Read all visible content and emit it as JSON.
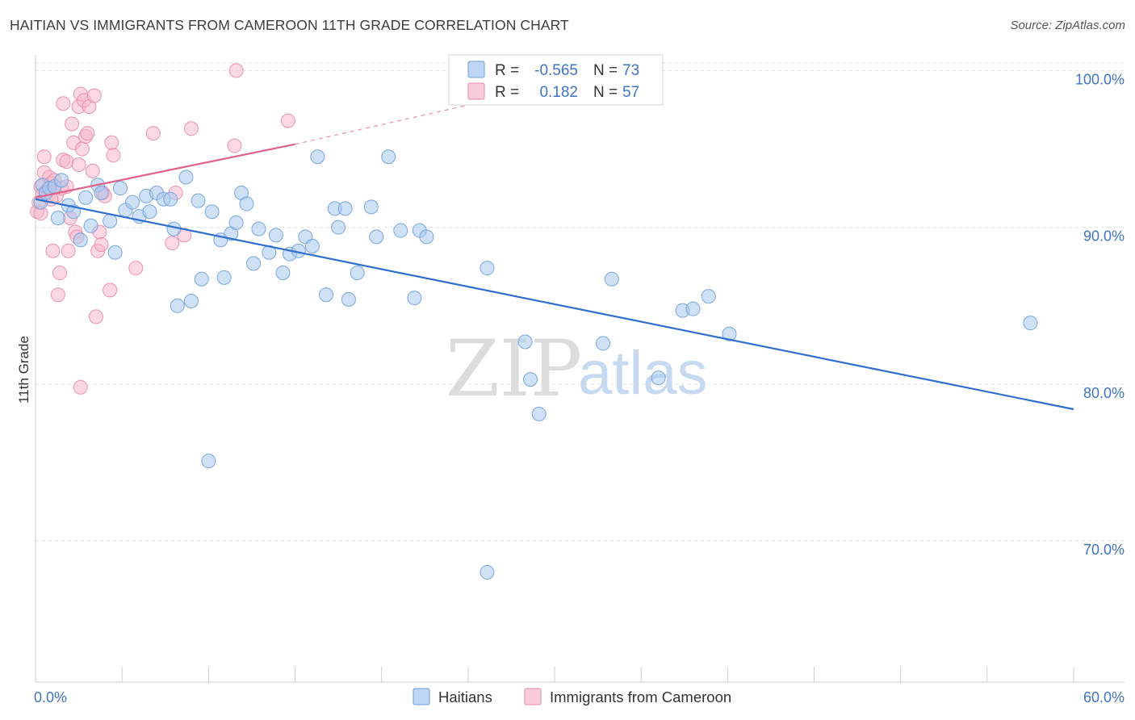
{
  "title": "HAITIAN VS IMMIGRANTS FROM CAMEROON 11TH GRADE CORRELATION CHART",
  "source": "Source: ZipAtlas.com",
  "watermark": {
    "zip": "ZIP",
    "atlas": "atlas"
  },
  "colors": {
    "haitians": "#a8c8f0",
    "haitians_stroke": "#6e9fd8",
    "haitians_line": "#2f6fd0",
    "cameroon": "#f7b8cc",
    "cameroon_stroke": "#e88aa8",
    "cameroon_line": "#e0608a",
    "tick_text": "#3f74c4",
    "grid": "#e4e4e4"
  },
  "legend": {
    "rows": [
      {
        "r_label": "R =",
        "r_value": "-0.565",
        "n_label": "N =",
        "n_value": "73"
      },
      {
        "r_label": "R =",
        "r_value": "0.182",
        "n_label": "N =",
        "n_value": "57"
      }
    ]
  },
  "chart_data": {
    "type": "scatter",
    "title": "HAITIAN VS IMMIGRANTS FROM CAMEROON 11TH GRADE CORRELATION CHART",
    "xlabel": "",
    "ylabel": "11th Grade",
    "xlim": [
      0,
      60
    ],
    "ylim": [
      61,
      101
    ],
    "x_tick_labels": [
      "0.0%",
      "60.0%"
    ],
    "y_ticks": [
      70,
      80,
      90,
      100
    ],
    "y_tick_labels": [
      "70.0%",
      "80.0%",
      "90.0%",
      "100.0%"
    ],
    "grid": true,
    "legend_position": "bottom",
    "series": [
      {
        "name": "Haitians",
        "r": -0.565,
        "n": 73,
        "trend": {
          "x0": 0,
          "y0": 91.8,
          "x1": 60,
          "y1": 78.4
        },
        "points": [
          [
            0.3,
            91.6
          ],
          [
            0.4,
            92.7
          ],
          [
            0.6,
            92.2
          ],
          [
            0.8,
            92.5
          ],
          [
            1.1,
            92.6
          ],
          [
            1.3,
            90.6
          ],
          [
            1.5,
            93.0
          ],
          [
            1.9,
            91.4
          ],
          [
            2.2,
            91.0
          ],
          [
            2.6,
            89.2
          ],
          [
            2.9,
            91.9
          ],
          [
            3.2,
            90.1
          ],
          [
            3.6,
            92.7
          ],
          [
            3.8,
            92.2
          ],
          [
            4.3,
            90.4
          ],
          [
            4.6,
            88.4
          ],
          [
            4.9,
            92.5
          ],
          [
            5.2,
            91.1
          ],
          [
            5.6,
            91.6
          ],
          [
            6.0,
            90.7
          ],
          [
            6.4,
            92.0
          ],
          [
            6.6,
            91.0
          ],
          [
            7.0,
            92.2
          ],
          [
            7.4,
            91.8
          ],
          [
            7.8,
            91.8
          ],
          [
            8.0,
            89.9
          ],
          [
            8.2,
            85.0
          ],
          [
            8.7,
            93.2
          ],
          [
            9.0,
            85.3
          ],
          [
            9.4,
            91.7
          ],
          [
            9.6,
            86.7
          ],
          [
            10.2,
            91.0
          ],
          [
            10.7,
            89.2
          ],
          [
            10.9,
            86.8
          ],
          [
            11.3,
            89.6
          ],
          [
            11.6,
            90.3
          ],
          [
            11.9,
            92.2
          ],
          [
            12.2,
            91.5
          ],
          [
            12.6,
            87.7
          ],
          [
            12.9,
            89.9
          ],
          [
            13.5,
            88.4
          ],
          [
            13.9,
            89.5
          ],
          [
            14.3,
            87.1
          ],
          [
            14.7,
            88.3
          ],
          [
            15.2,
            88.5
          ],
          [
            15.6,
            89.4
          ],
          [
            16.0,
            88.8
          ],
          [
            16.3,
            94.5
          ],
          [
            16.8,
            85.7
          ],
          [
            17.3,
            91.2
          ],
          [
            17.5,
            90.0
          ],
          [
            17.9,
            91.2
          ],
          [
            18.1,
            85.4
          ],
          [
            18.6,
            87.1
          ],
          [
            19.4,
            91.3
          ],
          [
            19.7,
            89.4
          ],
          [
            20.4,
            94.5
          ],
          [
            21.1,
            89.8
          ],
          [
            21.9,
            85.5
          ],
          [
            22.2,
            89.8
          ],
          [
            22.6,
            89.4
          ],
          [
            26.1,
            87.4
          ],
          [
            28.3,
            82.7
          ],
          [
            28.6,
            80.3
          ],
          [
            29.1,
            78.1
          ],
          [
            32.8,
            82.6
          ],
          [
            33.3,
            86.7
          ],
          [
            36.0,
            80.4
          ],
          [
            37.4,
            84.7
          ],
          [
            38.0,
            84.8
          ],
          [
            38.9,
            85.6
          ],
          [
            40.1,
            83.2
          ],
          [
            57.5,
            83.9
          ],
          [
            10.0,
            75.1
          ],
          [
            26.1,
            68.0
          ]
        ]
      },
      {
        "name": "Immigrants from Cameroon",
        "r": 0.182,
        "n": 57,
        "trend": {
          "x0": 0,
          "y0": 91.9,
          "x1": 15,
          "y1": 95.3
        },
        "trend_dashed": {
          "x0": 15,
          "y0": 95.3,
          "x1": 25,
          "y1": 97.8
        },
        "points": [
          [
            0.1,
            91.0
          ],
          [
            0.2,
            91.6
          ],
          [
            0.3,
            92.6
          ],
          [
            0.4,
            92.1
          ],
          [
            0.5,
            93.5
          ],
          [
            0.5,
            94.5
          ],
          [
            0.6,
            92.3
          ],
          [
            0.7,
            92.0
          ],
          [
            0.8,
            93.2
          ],
          [
            0.9,
            92.8
          ],
          [
            1.0,
            88.5
          ],
          [
            1.1,
            93.0
          ],
          [
            1.2,
            92.0
          ],
          [
            1.3,
            85.7
          ],
          [
            1.4,
            87.1
          ],
          [
            1.5,
            92.5
          ],
          [
            1.6,
            94.3
          ],
          [
            1.6,
            97.9
          ],
          [
            1.8,
            94.2
          ],
          [
            1.9,
            88.5
          ],
          [
            2.0,
            90.6
          ],
          [
            2.1,
            96.6
          ],
          [
            2.2,
            95.4
          ],
          [
            2.3,
            89.7
          ],
          [
            2.4,
            89.4
          ],
          [
            2.5,
            94.0
          ],
          [
            2.5,
            97.7
          ],
          [
            2.6,
            98.5
          ],
          [
            2.6,
            79.8
          ],
          [
            2.7,
            95.0
          ],
          [
            2.8,
            98.1
          ],
          [
            2.9,
            95.8
          ],
          [
            3.0,
            96.0
          ],
          [
            3.1,
            97.7
          ],
          [
            3.3,
            93.6
          ],
          [
            3.4,
            98.4
          ],
          [
            3.5,
            84.3
          ],
          [
            3.6,
            88.5
          ],
          [
            3.7,
            89.7
          ],
          [
            3.8,
            88.9
          ],
          [
            3.9,
            92.2
          ],
          [
            4.0,
            92.0
          ],
          [
            4.3,
            86.0
          ],
          [
            4.4,
            95.4
          ],
          [
            4.5,
            94.6
          ],
          [
            5.8,
            87.4
          ],
          [
            6.8,
            96.0
          ],
          [
            7.9,
            89.0
          ],
          [
            8.1,
            92.2
          ],
          [
            8.6,
            89.5
          ],
          [
            9.0,
            96.3
          ],
          [
            11.5,
            95.2
          ],
          [
            11.6,
            100.0
          ],
          [
            14.6,
            96.8
          ],
          [
            0.3,
            90.9
          ],
          [
            1.8,
            92.6
          ],
          [
            0.9,
            91.8
          ]
        ]
      }
    ]
  },
  "bottom_legend": [
    {
      "label": "Haitians"
    },
    {
      "label": "Immigrants from Cameroon"
    }
  ]
}
